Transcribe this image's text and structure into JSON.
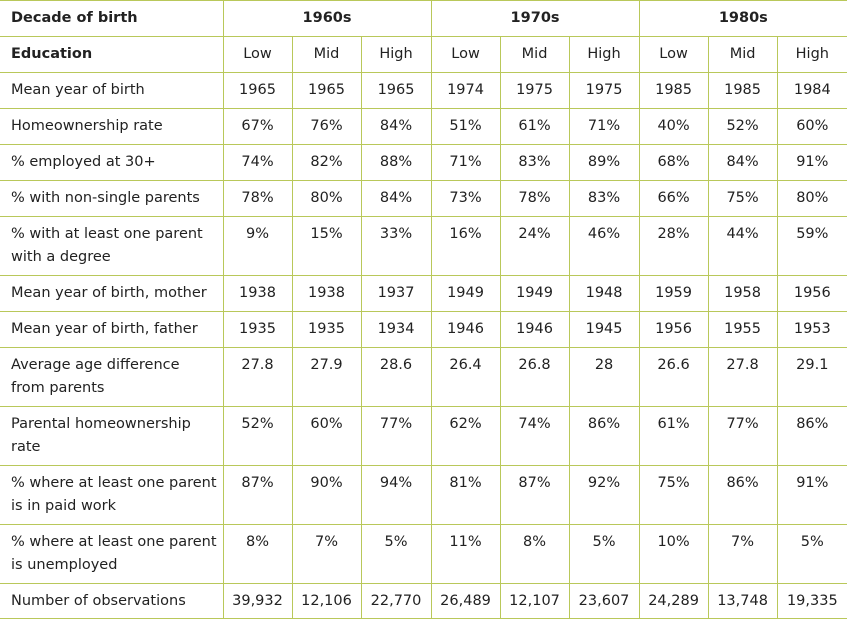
{
  "header": {
    "decade_label": "Decade of birth",
    "decades": [
      "1960s",
      "1970s",
      "1980s"
    ],
    "education_label": "Education",
    "levels": [
      "Low",
      "Mid",
      "High",
      "Low",
      "Mid",
      "High",
      "Low",
      "Mid",
      "High"
    ]
  },
  "rows": [
    {
      "label": "Mean year of birth",
      "values": [
        "1965",
        "1965",
        "1965",
        "1974",
        "1975",
        "1975",
        "1985",
        "1985",
        "1984"
      ]
    },
    {
      "label": "Homeownership rate",
      "values": [
        "67%",
        "76%",
        "84%",
        "51%",
        "61%",
        "71%",
        "40%",
        "52%",
        "60%"
      ]
    },
    {
      "label": "% employed at 30+",
      "values": [
        "74%",
        "82%",
        "88%",
        "71%",
        "83%",
        "89%",
        "68%",
        "84%",
        "91%"
      ]
    },
    {
      "label": "% with non-single parents",
      "values": [
        "78%",
        "80%",
        "84%",
        "73%",
        "78%",
        "83%",
        "66%",
        "75%",
        "80%"
      ]
    },
    {
      "label": "% with at least one parent with a degree",
      "values": [
        "9%",
        "15%",
        "33%",
        "16%",
        "24%",
        "46%",
        "28%",
        "44%",
        "59%"
      ]
    },
    {
      "label": "Mean year of birth, mother",
      "values": [
        "1938",
        "1938",
        "1937",
        "1949",
        "1949",
        "1948",
        "1959",
        "1958",
        "1956"
      ]
    },
    {
      "label": "Mean year of birth, father",
      "values": [
        "1935",
        "1935",
        "1934",
        "1946",
        "1946",
        "1945",
        "1956",
        "1955",
        "1953"
      ]
    },
    {
      "label": "Average age difference from parents",
      "values": [
        "27.8",
        "27.9",
        "28.6",
        "26.4",
        "26.8",
        "28",
        "26.6",
        "27.8",
        "29.1"
      ]
    },
    {
      "label": "Parental homeownership rate",
      "values": [
        "52%",
        "60%",
        "77%",
        "62%",
        "74%",
        "86%",
        "61%",
        "77%",
        "86%"
      ]
    },
    {
      "label": "% where at least one parent is in paid work",
      "values": [
        "87%",
        "90%",
        "94%",
        "81%",
        "87%",
        "92%",
        "75%",
        "86%",
        "91%"
      ]
    },
    {
      "label": "% where at least one parent is unemployed",
      "values": [
        "8%",
        "7%",
        "5%",
        "11%",
        "8%",
        "5%",
        "10%",
        "7%",
        "5%"
      ]
    }
  ],
  "footer": {
    "label": "Number of observations",
    "values": [
      "39,932",
      "12,106",
      "22,770",
      "26,489",
      "12,107",
      "23,607",
      "24,289",
      "13,748",
      "19,335"
    ]
  },
  "colors": {
    "border": "#b9c85a",
    "text": "#222222"
  }
}
